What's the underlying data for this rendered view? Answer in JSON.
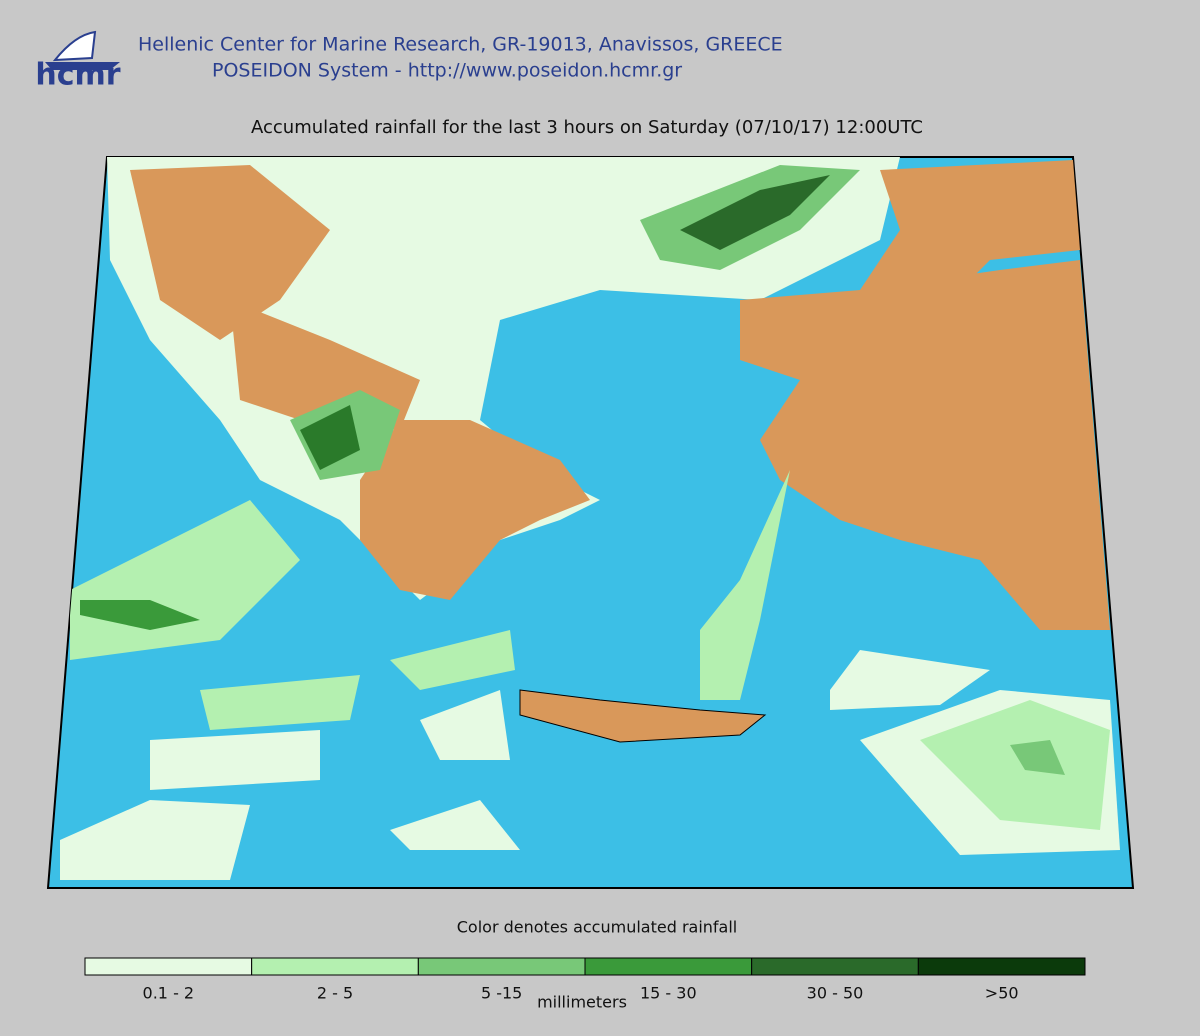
{
  "header": {
    "logo": "hcmr",
    "line1": "Hellenic Center for Marine Research, GR-19013, Anavissos, GREECE",
    "line2": "POSEIDON System - http://www.poseidon.hcmr.gr"
  },
  "title": "Accumulated rainfall for the last 3 hours on Saturday (07/10/17) 12:00UTC",
  "legend": {
    "caption": "Color denotes accumulated rainfall",
    "unit": "millimeters",
    "classes": [
      {
        "label": "0.1 - 2",
        "color": "#e6fae3"
      },
      {
        "label": "2 - 5",
        "color": "#b4f0b0"
      },
      {
        "label": "5 -15",
        "color": "#78c878"
      },
      {
        "label": "15 - 30",
        "color": "#3a9a3a"
      },
      {
        "label": "30 - 50",
        "color": "#2a6a2a"
      },
      {
        "label": ">50",
        "color": "#0b3a0b"
      }
    ]
  }
}
